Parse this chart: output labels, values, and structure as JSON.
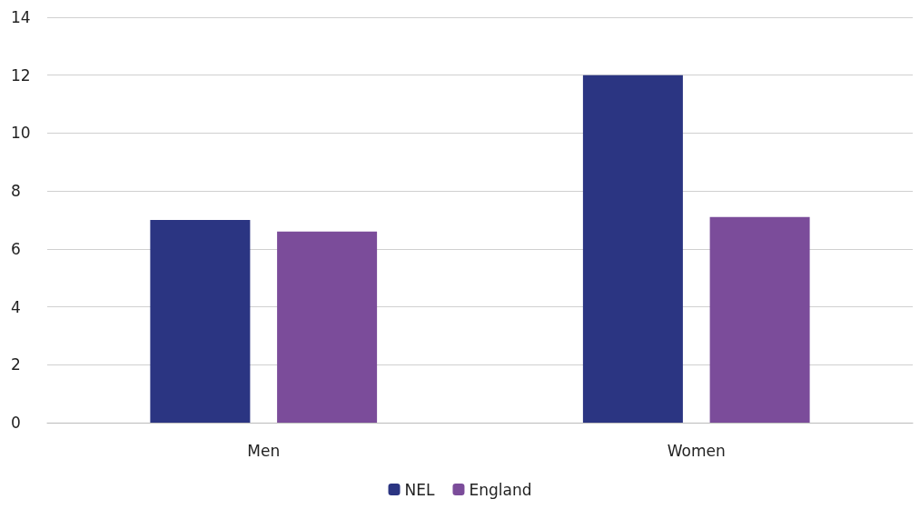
{
  "chart_data": {
    "type": "bar",
    "categories": [
      "Men",
      "Women"
    ],
    "series": [
      {
        "name": "NEL",
        "color": "#2b3582",
        "values": [
          7.0,
          12.0
        ]
      },
      {
        "name": "England",
        "color": "#7b4c9a",
        "values": [
          6.6,
          7.1
        ]
      }
    ],
    "ylim": [
      0,
      14
    ],
    "yticks": [
      0,
      2,
      4,
      6,
      8,
      10,
      12,
      14
    ],
    "grid": "y",
    "legend": "bottom"
  }
}
